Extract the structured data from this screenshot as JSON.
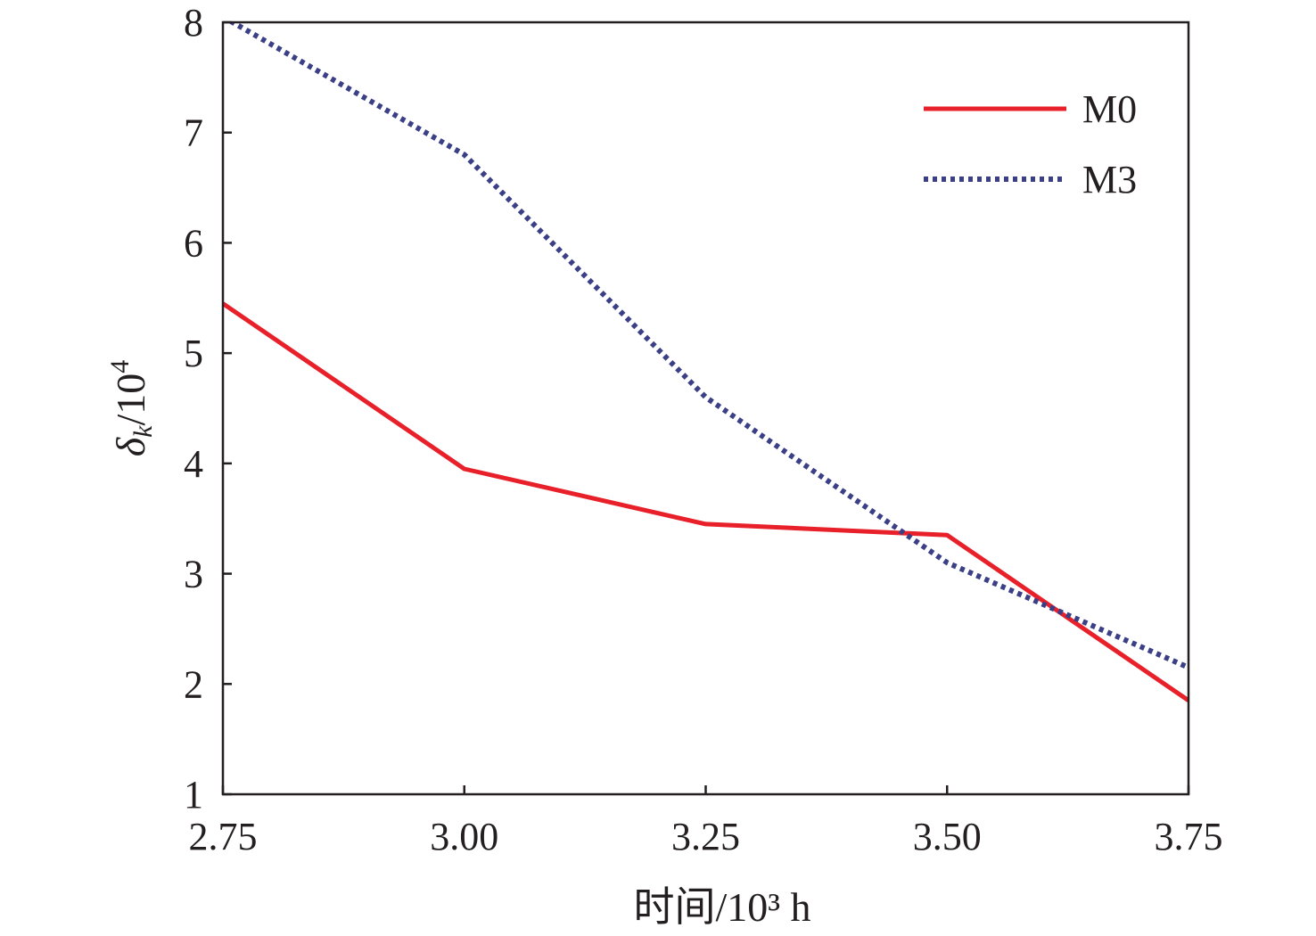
{
  "chart_data": {
    "type": "line",
    "xlabel": "时间/10³ h",
    "ylabel_parts": {
      "symbol": "δ",
      "subscript": "k",
      "base": "/10",
      "superscript": "4"
    },
    "xlim": [
      2.75,
      3.75
    ],
    "ylim": [
      1,
      8
    ],
    "x_ticks": [
      "2.75",
      "3.00",
      "3.25",
      "3.50",
      "3.75"
    ],
    "y_ticks": [
      "1",
      "2",
      "3",
      "4",
      "5",
      "6",
      "7",
      "8"
    ],
    "legend_position": "top-right",
    "grid": false,
    "series": [
      {
        "name": "M0",
        "style": "solid",
        "color": "#e8202a",
        "x": [
          2.75,
          3.0,
          3.25,
          3.5,
          3.75
        ],
        "y": [
          5.45,
          3.95,
          3.45,
          3.35,
          1.85
        ]
      },
      {
        "name": "M3",
        "style": "dotted",
        "color": "#3b3f86",
        "x": [
          2.75,
          3.0,
          3.25,
          3.5,
          3.75
        ],
        "y": [
          8.05,
          6.8,
          4.6,
          3.1,
          2.15
        ]
      }
    ]
  }
}
